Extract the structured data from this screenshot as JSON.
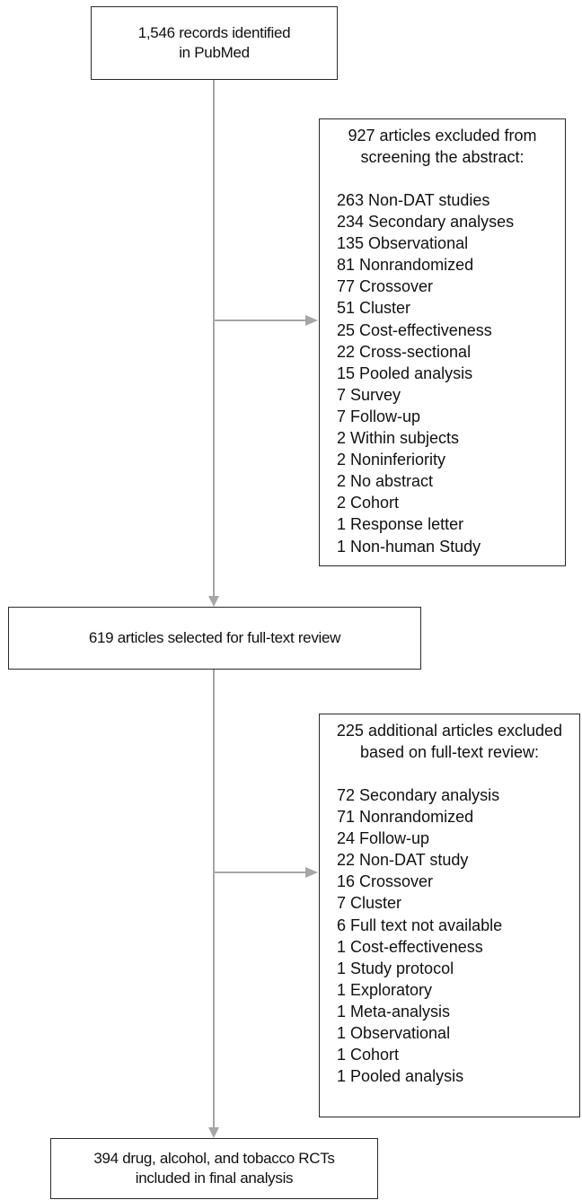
{
  "boxes": {
    "identified": {
      "lines": [
        "1,546 records identified",
        "in PubMed"
      ]
    },
    "excluded_abstract": {
      "title_lines": [
        "927 articles excluded from",
        "screening the abstract:"
      ],
      "items": [
        "263 Non-DAT studies",
        "234 Secondary analyses",
        "135 Observational",
        "81 Nonrandomized",
        "77 Crossover",
        "51 Cluster",
        "25 Cost-effectiveness",
        "22 Cross-sectional",
        "15 Pooled analysis",
        "7 Survey",
        "7 Follow-up",
        "2 Within subjects",
        "2 Noninferiority",
        "2 No abstract",
        "2 Cohort",
        "1 Response letter",
        "1 Non-human Study"
      ]
    },
    "full_text": {
      "lines": [
        "619 articles selected for full-text review"
      ]
    },
    "excluded_full_text": {
      "title_lines": [
        "225 additional articles excluded",
        "based on full-text review:"
      ],
      "items": [
        "72 Secondary analysis",
        "71 Nonrandomized",
        "24 Follow-up",
        "22 Non-DAT study",
        "16 Crossover",
        "7 Cluster",
        "6 Full text not available",
        "1 Cost-effectiveness",
        "1 Study protocol",
        "1 Exploratory",
        "1 Meta-analysis",
        "1 Observational",
        "1 Cohort",
        "1 Pooled analysis"
      ]
    },
    "final": {
      "lines": [
        "394 drug, alcohol, and tobacco RCTs",
        "included in final analysis"
      ]
    }
  },
  "colors": {
    "box_border": "#2a2a2a",
    "arrow": "#a6a6a6",
    "text": "#111111"
  }
}
